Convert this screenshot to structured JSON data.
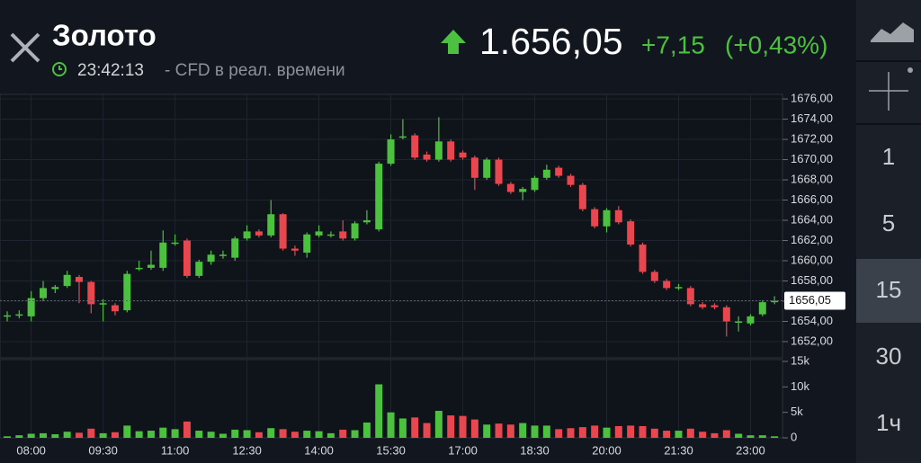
{
  "header": {
    "title": "Золото",
    "time": "23:42:13",
    "subtitle": "- CFD в реал. времени",
    "price": "1.656,05",
    "change": "+7,15",
    "change_pct": "(+0,43%)"
  },
  "toolbar": {
    "intervals": [
      "1",
      "5",
      "15",
      "30",
      "1ч"
    ],
    "selected": "15"
  },
  "chart_data": {
    "type": "candlestick",
    "categories": [
      null,
      null,
      "08:00",
      null,
      null,
      null,
      null,
      null,
      "09:30",
      null,
      null,
      null,
      null,
      null,
      "11:00",
      null,
      null,
      null,
      null,
      null,
      "12:30",
      null,
      null,
      null,
      null,
      null,
      "14:00",
      null,
      null,
      null,
      null,
      null,
      "15:30",
      null,
      null,
      null,
      null,
      null,
      "17:00",
      null,
      null,
      null,
      null,
      null,
      "18:30",
      null,
      null,
      null,
      null,
      null,
      "20:00",
      null,
      null,
      null,
      null,
      null,
      "21:30",
      null,
      null,
      null,
      null,
      null,
      "23:00",
      null,
      null
    ],
    "open": [
      1654.5,
      1654.7,
      1654.5,
      1656.3,
      1657.2,
      1657.5,
      1658.4,
      1657.9,
      1655.8,
      1655.6,
      1655.1,
      1659.3,
      1659.3,
      1659.3,
      1661.8,
      1662.0,
      1658.5,
      1659.9,
      1660.6,
      1660.3,
      1662.2,
      1662.9,
      1662.5,
      1664.6,
      1661.2,
      1660.8,
      1662.5,
      1662.6,
      1662.9,
      1662.2,
      1663.8,
      1663.1,
      1669.6,
      1672.3,
      1672.4,
      1670.5,
      1670.0,
      1671.8,
      1670.7,
      1670.2,
      1668.2,
      1670.0,
      1667.6,
      1666.8,
      1667.0,
      1668.2,
      1669.2,
      1668.4,
      1667.5,
      1665.1,
      1663.4,
      1665.0,
      1663.9,
      1661.6,
      1658.9,
      1658.0,
      1657.4,
      1657.3,
      1655.7,
      1655.6,
      1655.4,
      1654.0,
      1653.8,
      1654.7,
      1655.9
    ],
    "high": [
      1655.0,
      1655.1,
      1657.0,
      1658.0,
      1657.6,
      1659.0,
      1658.6,
      1658.0,
      1656.2,
      1655.8,
      1659.0,
      1660.0,
      1661.0,
      1663.0,
      1662.6,
      1662.2,
      1660.1,
      1661.0,
      1661.0,
      1662.4,
      1663.5,
      1663.1,
      1666.0,
      1664.7,
      1661.5,
      1662.8,
      1663.5,
      1662.9,
      1664.0,
      1663.9,
      1665.0,
      1669.8,
      1672.5,
      1674.0,
      1672.6,
      1670.8,
      1674.2,
      1672.0,
      1670.9,
      1670.4,
      1670.2,
      1670.2,
      1667.8,
      1667.3,
      1668.4,
      1669.5,
      1669.4,
      1668.6,
      1667.7,
      1665.3,
      1665.2,
      1665.4,
      1664.1,
      1661.8,
      1659.1,
      1658.2,
      1657.7,
      1657.5,
      1655.9,
      1655.8,
      1655.6,
      1654.5,
      1654.7,
      1656.1,
      1656.5
    ],
    "low": [
      1654.0,
      1654.3,
      1654.0,
      1656.0,
      1656.8,
      1657.3,
      1655.8,
      1654.8,
      1654.0,
      1654.6,
      1654.9,
      1659.0,
      1659.1,
      1659.0,
      1661.5,
      1658.3,
      1658.3,
      1659.6,
      1660.2,
      1660.0,
      1662.0,
      1662.3,
      1662.3,
      1661.0,
      1660.5,
      1660.3,
      1662.3,
      1662.3,
      1662.0,
      1662.0,
      1663.6,
      1662.9,
      1669.4,
      1672.0,
      1670.0,
      1669.8,
      1669.8,
      1669.8,
      1670.0,
      1667.0,
      1668.0,
      1667.4,
      1666.6,
      1666.0,
      1666.8,
      1668.0,
      1668.2,
      1667.3,
      1664.9,
      1663.2,
      1662.8,
      1663.6,
      1661.4,
      1658.7,
      1657.8,
      1657.1,
      1657.1,
      1655.5,
      1655.2,
      1655.2,
      1652.5,
      1653.0,
      1653.6,
      1654.5,
      1655.7
    ],
    "close": [
      1654.6,
      1654.7,
      1656.3,
      1657.3,
      1657.4,
      1658.6,
      1657.9,
      1655.7,
      1655.8,
      1655.0,
      1658.7,
      1659.3,
      1659.6,
      1661.8,
      1661.8,
      1658.5,
      1659.9,
      1660.6,
      1660.6,
      1662.2,
      1662.9,
      1662.5,
      1664.6,
      1661.2,
      1661.0,
      1662.6,
      1662.9,
      1662.6,
      1662.2,
      1663.7,
      1664.0,
      1669.6,
      1672.0,
      1672.3,
      1670.2,
      1670.0,
      1671.8,
      1670.0,
      1670.2,
      1668.2,
      1670.0,
      1667.6,
      1666.8,
      1667.1,
      1668.2,
      1669.0,
      1668.4,
      1667.5,
      1665.1,
      1663.4,
      1665.0,
      1663.8,
      1661.6,
      1658.9,
      1658.0,
      1657.3,
      1657.4,
      1655.7,
      1655.4,
      1655.4,
      1654.0,
      1654.0,
      1654.5,
      1655.9,
      1656.05
    ],
    "volume": [
      300,
      500,
      800,
      900,
      700,
      1200,
      1000,
      1800,
      900,
      1100,
      2400,
      1300,
      1400,
      2000,
      1700,
      3200,
      1400,
      1200,
      800,
      1600,
      1500,
      1100,
      1900,
      1700,
      1200,
      1400,
      1300,
      900,
      1600,
      1500,
      3000,
      10500,
      5000,
      3800,
      4000,
      2900,
      5300,
      4400,
      4300,
      3600,
      2600,
      2800,
      2600,
      2900,
      2400,
      2400,
      1700,
      1900,
      2100,
      2400,
      2000,
      2300,
      2400,
      2300,
      1800,
      1400,
      1400,
      1800,
      1200,
      900,
      1500,
      800,
      500,
      500,
      300
    ],
    "last_price_label": "1656,05",
    "up_color": "#4cc13f",
    "down_color": "#e8474f",
    "ylim": [
      1650.4,
      1676.45
    ],
    "yticks": [
      {
        "value": 1652,
        "label": "1652,00"
      },
      {
        "value": 1654,
        "label": "1654,00"
      },
      {
        "value": 1656,
        "label": "1656,00"
      },
      {
        "value": 1658,
        "label": "1658,00"
      },
      {
        "value": 1660,
        "label": "1660,00"
      },
      {
        "value": 1662,
        "label": "1662,00"
      },
      {
        "value": 1664,
        "label": "1664,00"
      },
      {
        "value": 1666,
        "label": "1666,00"
      },
      {
        "value": 1668,
        "label": "1668,00"
      },
      {
        "value": 1670,
        "label": "1670,00"
      },
      {
        "value": 1672,
        "label": "1672,00"
      },
      {
        "value": 1674,
        "label": "1674,00"
      },
      {
        "value": 1676,
        "label": "1676,00"
      }
    ],
    "y2lim": [
      0,
      15000
    ],
    "y2ticks": [
      0,
      {
        "value": 5000,
        "label": "5k"
      },
      {
        "value": 10000,
        "label": "10k"
      },
      {
        "value": 15000,
        "label": "15k"
      }
    ],
    "grid": true
  }
}
